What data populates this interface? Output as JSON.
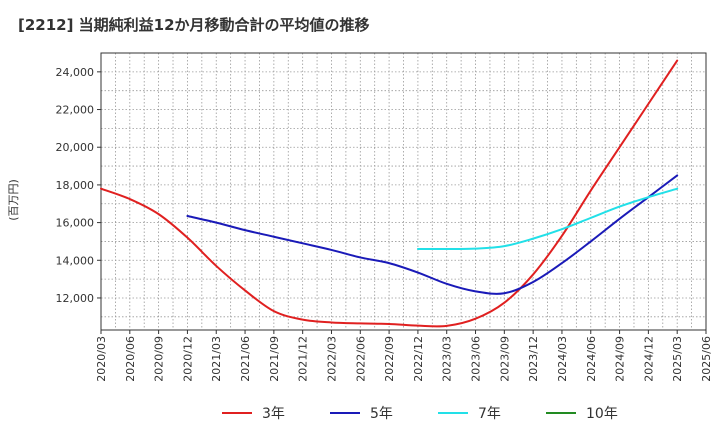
{
  "chart_data": {
    "type": "line",
    "title": "[2212]  当期純利益12か月移動合計の平均値の推移",
    "ylabel": "(百万円)",
    "xlabel": "",
    "x_ticks": [
      "2020/03",
      "2020/06",
      "2020/09",
      "2020/12",
      "2021/03",
      "2021/06",
      "2021/09",
      "2021/12",
      "2022/03",
      "2022/06",
      "2022/09",
      "2022/12",
      "2023/03",
      "2023/06",
      "2023/09",
      "2023/12",
      "2024/03",
      "2024/06",
      "2024/09",
      "2024/12",
      "2025/03",
      "2025/06"
    ],
    "y_ticks": [
      12000,
      14000,
      16000,
      18000,
      20000,
      22000,
      24000
    ],
    "y_tick_labels": [
      "12,000",
      "14,000",
      "16,000",
      "18,000",
      "20,000",
      "22,000",
      "24,000"
    ],
    "ylim": [
      10300,
      25000
    ],
    "grid": true,
    "legend_position": "bottom",
    "series": [
      {
        "name": "3年",
        "color": "#e02020",
        "x": [
          "2020/03",
          "2020/06",
          "2020/09",
          "2020/12",
          "2021/03",
          "2021/06",
          "2021/09",
          "2021/12",
          "2022/03",
          "2022/06",
          "2022/09",
          "2022/12",
          "2023/03",
          "2023/06",
          "2023/09",
          "2023/12",
          "2024/03",
          "2024/06",
          "2024/09",
          "2024/12",
          "2025/03"
        ],
        "values": [
          17800,
          17250,
          16450,
          15200,
          13700,
          12400,
          11300,
          10850,
          10700,
          10650,
          10620,
          10530,
          10520,
          10900,
          11750,
          13250,
          15300,
          17700,
          20000,
          22300,
          24600
        ]
      },
      {
        "name": "5年",
        "color": "#1a1ab8",
        "x": [
          "2020/12",
          "2021/03",
          "2021/06",
          "2021/09",
          "2021/12",
          "2022/03",
          "2022/06",
          "2022/09",
          "2022/12",
          "2023/03",
          "2023/06",
          "2023/09",
          "2023/12",
          "2024/03",
          "2024/06",
          "2024/09",
          "2024/12",
          "2025/03"
        ],
        "values": [
          16350,
          16000,
          15600,
          15250,
          14900,
          14550,
          14150,
          13850,
          13350,
          12750,
          12350,
          12250,
          12850,
          13850,
          15000,
          16200,
          17350,
          18500
        ]
      },
      {
        "name": "7年",
        "color": "#22e0e8",
        "x": [
          "2022/12",
          "2023/03",
          "2023/06",
          "2023/09",
          "2023/12",
          "2024/03",
          "2024/06",
          "2024/09",
          "2024/12",
          "2025/03"
        ],
        "values": [
          14600,
          14600,
          14620,
          14750,
          15150,
          15650,
          16250,
          16850,
          17350,
          17800
        ]
      },
      {
        "name": "10年",
        "color": "#228b22",
        "x": [],
        "values": []
      }
    ]
  }
}
